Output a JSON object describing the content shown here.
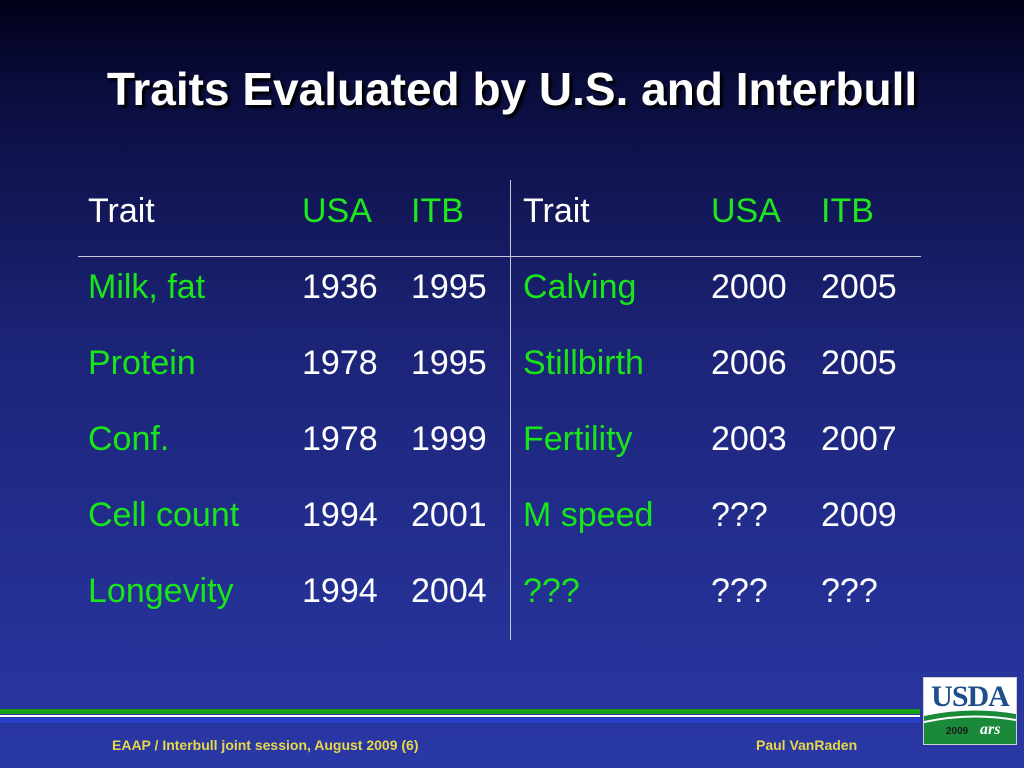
{
  "title": "Traits Evaluated by U.S. and Interbull",
  "table": {
    "headers": [
      "Trait",
      "USA",
      "ITB",
      "Trait",
      "USA",
      "ITB"
    ],
    "rows": [
      [
        "Milk, fat",
        "1936",
        "1995",
        "Calving",
        "2000",
        "2005"
      ],
      [
        "Protein",
        "1978",
        "1995",
        "Stillbirth",
        "2006",
        "2005"
      ],
      [
        "Conf.",
        "1978",
        "1999",
        "Fertility",
        "2003",
        "2007"
      ],
      [
        "Cell count",
        "1994",
        "2001",
        "M speed",
        "???",
        "2009"
      ],
      [
        "Longevity",
        "1994",
        "2004",
        "???",
        "???",
        "???"
      ]
    ]
  },
  "footer": {
    "left": "EAAP / Interbull joint session, August 2009 (6)",
    "right": "Paul VanRaden"
  },
  "logo": {
    "text": "USDA",
    "year": "2009",
    "mark": "ars"
  },
  "colors": {
    "trait_green": "#19e619",
    "footer_yellow": "#e8d84a",
    "stripe_green": "#19a019",
    "stripe_blue": "#2840c8"
  }
}
